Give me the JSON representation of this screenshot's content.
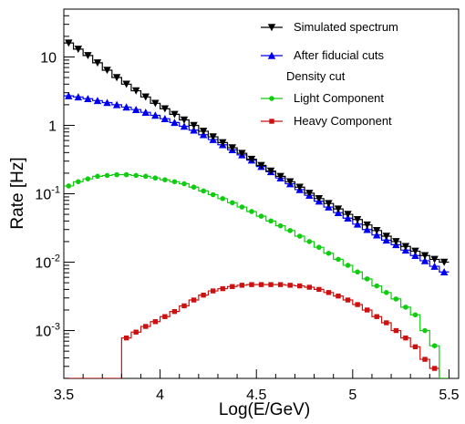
{
  "chart_data": {
    "type": "line",
    "xlabel": "Log(E/GeV)",
    "ylabel": "Rate [Hz]",
    "xlim": [
      3.5,
      5.55
    ],
    "ylim": [
      0.0002,
      50
    ],
    "y_scale": "log",
    "grid": false,
    "legend_position": "top-right",
    "x_ticks": [
      {
        "value": 3.5,
        "label": "3.5"
      },
      {
        "value": 4.0,
        "label": "4"
      },
      {
        "value": 4.5,
        "label": "4.5"
      },
      {
        "value": 5.0,
        "label": "5"
      },
      {
        "value": 5.5,
        "label": "5.5"
      }
    ],
    "y_ticks": [
      {
        "value": 0.001,
        "base": "10",
        "exp": "-3"
      },
      {
        "value": 0.01,
        "base": "10",
        "exp": "-2"
      },
      {
        "value": 0.1,
        "base": "10",
        "exp": "-1"
      },
      {
        "value": 1,
        "base": "1",
        "exp": ""
      },
      {
        "value": 10,
        "base": "10",
        "exp": ""
      }
    ],
    "bin_width": 0.05,
    "legend_note": "Density cut",
    "series": [
      {
        "name": "Simulated spectrum",
        "color": "#000000",
        "marker": "triangle-down",
        "bin_start": 3.5,
        "values": [
          16,
          13,
          10.5,
          8.2,
          6.4,
          5.0,
          4.0,
          3.2,
          2.6,
          2.1,
          1.75,
          1.45,
          1.2,
          1.0,
          0.82,
          0.68,
          0.56,
          0.47,
          0.39,
          0.32,
          0.26,
          0.215,
          0.18,
          0.15,
          0.125,
          0.102,
          0.085,
          0.072,
          0.06,
          0.05,
          0.042,
          0.035,
          0.029,
          0.024,
          0.02,
          0.017,
          0.0145,
          0.0125,
          0.011,
          0.01
        ]
      },
      {
        "name": "After fiducial cuts",
        "color": "#0000ee",
        "marker": "triangle-up",
        "bin_start": 3.5,
        "values": [
          2.7,
          2.6,
          2.45,
          2.3,
          2.15,
          2.0,
          1.85,
          1.7,
          1.55,
          1.4,
          1.25,
          1.1,
          0.97,
          0.85,
          0.73,
          0.62,
          0.52,
          0.44,
          0.37,
          0.31,
          0.25,
          0.21,
          0.17,
          0.14,
          0.115,
          0.095,
          0.078,
          0.064,
          0.053,
          0.044,
          0.036,
          0.03,
          0.025,
          0.021,
          0.018,
          0.015,
          0.0125,
          0.0105,
          0.0087,
          0.0072
        ]
      },
      {
        "name": "Light Component",
        "color": "#11cc11",
        "marker": "circle",
        "bin_start": 3.5,
        "values": [
          0.13,
          0.15,
          0.165,
          0.18,
          0.185,
          0.19,
          0.19,
          0.185,
          0.18,
          0.17,
          0.16,
          0.15,
          0.14,
          0.125,
          0.11,
          0.097,
          0.085,
          0.074,
          0.064,
          0.055,
          0.047,
          0.04,
          0.034,
          0.029,
          0.024,
          0.02,
          0.0165,
          0.0135,
          0.011,
          0.009,
          0.0072,
          0.0057,
          0.0045,
          0.0036,
          0.0029,
          0.0022,
          0.0017,
          0.001,
          0.0006,
          0.0002
        ]
      },
      {
        "name": "Heavy Component",
        "color": "#cc1111",
        "marker": "square",
        "bin_start": 3.5,
        "values": [
          0.0002,
          0.0002,
          0.0002,
          0.0002,
          0.0002,
          0.0002,
          0.00078,
          0.00095,
          0.00115,
          0.00135,
          0.0016,
          0.0019,
          0.0023,
          0.0028,
          0.0033,
          0.0038,
          0.0041,
          0.0044,
          0.0046,
          0.0047,
          0.0047,
          0.0047,
          0.0047,
          0.0046,
          0.0045,
          0.0043,
          0.004,
          0.0036,
          0.0032,
          0.0028,
          0.0024,
          0.002,
          0.0016,
          0.0013,
          0.001,
          0.00078,
          0.00058,
          0.00038,
          0.00028,
          0.0002
        ]
      }
    ]
  }
}
